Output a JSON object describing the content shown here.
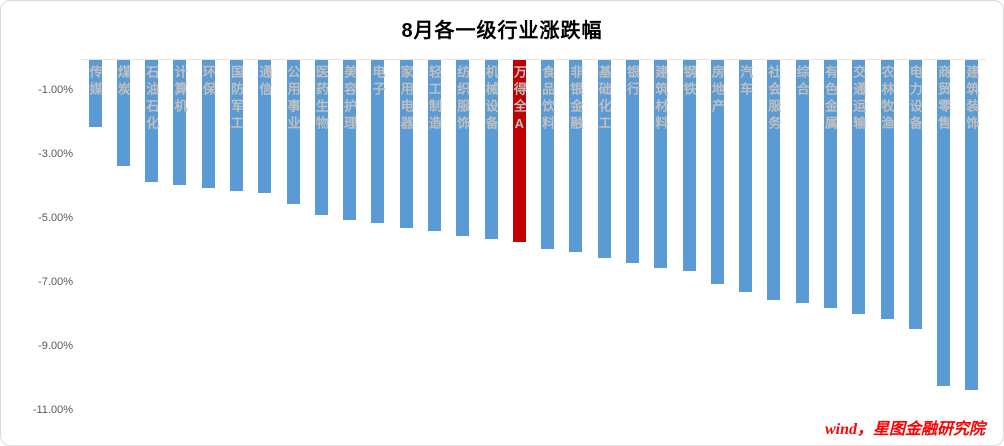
{
  "title": "8月各一级行业涨跌幅",
  "source_note": "wind，星图金融研究院",
  "colors": {
    "bar": "#5B9BD5",
    "highlight": "#C00000",
    "axis_text": "#595959",
    "category_label": "#BFBFBF"
  },
  "chart_data": {
    "type": "bar",
    "title": "8月各一级行业涨跌幅",
    "orientation": "vertical-negative",
    "unit": "%",
    "ylim": [
      -11,
      0
    ],
    "grid": false,
    "legend": "none",
    "y_tick_labels": [
      "-1.00%",
      "-3.00%",
      "-5.00%",
      "-7.00%",
      "-9.00%",
      "-11.00%"
    ],
    "y_tick_values": [
      -1,
      -3,
      -5,
      -7,
      -9,
      -11
    ],
    "highlight_index": 15,
    "highlight_category": "万得全A",
    "categories": [
      "传媒",
      "煤炭",
      "石油石化",
      "计算机",
      "环保",
      "国防军工",
      "通信",
      "公用事业",
      "医药生物",
      "美容护理",
      "电子",
      "家用电器",
      "轻工制造",
      "纺织服饰",
      "机械设备",
      "万得全A",
      "食品饮料",
      "非银金融",
      "基础化工",
      "银行",
      "建筑材料",
      "钢铁",
      "房地产",
      "汽车",
      "社会服务",
      "综合",
      "有色金属",
      "交通运输",
      "农林牧渔",
      "电力设备",
      "商贸零售",
      "建筑装饰"
    ],
    "values": [
      -2.1,
      -3.3,
      -3.8,
      -3.9,
      -4.0,
      -4.1,
      -4.15,
      -4.5,
      -4.85,
      -5.0,
      -5.1,
      -5.25,
      -5.35,
      -5.5,
      -5.6,
      -5.7,
      -5.9,
      -6.0,
      -6.2,
      -6.35,
      -6.5,
      -6.6,
      -7.0,
      -7.25,
      -7.5,
      -7.6,
      -7.75,
      -7.95,
      -8.1,
      -8.4,
      -10.2,
      -10.3
    ]
  }
}
